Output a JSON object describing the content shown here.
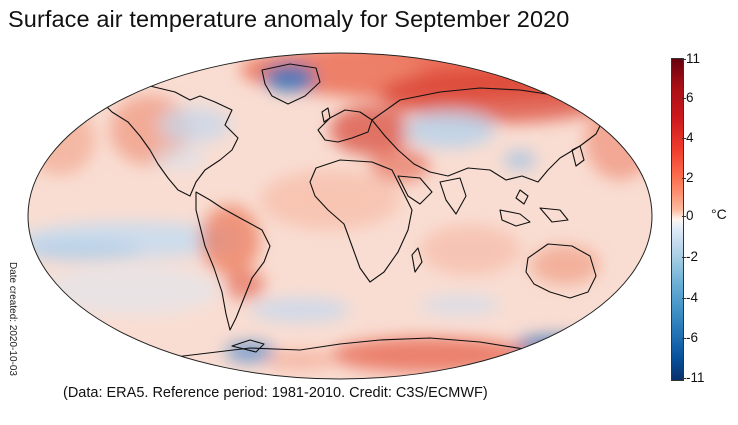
{
  "title": "Surface air temperature anomaly for September 2020",
  "credit": "(Data: ERA5.  Reference period: 1981-2010.  Credit: C3S/ECMWF)",
  "date_created": "Date created:  2020-10-03",
  "colorbar": {
    "ticks": [
      {
        "label": "11",
        "value": 11
      },
      {
        "label": "6",
        "value": 6
      },
      {
        "label": "4",
        "value": 4
      },
      {
        "label": "2",
        "value": 2
      },
      {
        "label": "0",
        "value": 0
      },
      {
        "label": "-2",
        "value": -2
      },
      {
        "label": "-4",
        "value": -4
      },
      {
        "label": "-6",
        "value": -6
      },
      {
        "label": "-11",
        "value": -11
      }
    ],
    "unit": "°C"
  },
  "colors": {
    "warm": "#ef3b2c",
    "mild_warm": "#fcbba1",
    "neutral": "#f7f4f2",
    "mild_cool": "#c6dbef",
    "cool": "#2171b5"
  }
}
